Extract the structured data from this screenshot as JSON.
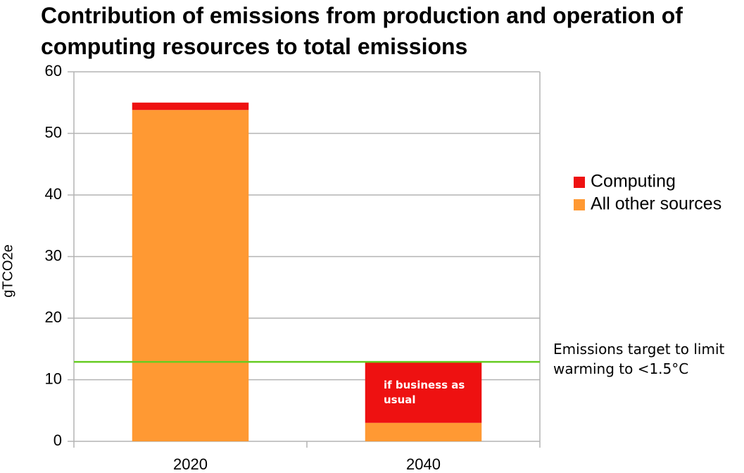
{
  "chart_data": {
    "type": "stacked_bar",
    "title": "Contribution of emissions from production and operation of computing resources to total emissions",
    "y_label": "gTCO2e",
    "categories": [
      "2020",
      "2040"
    ],
    "series": [
      {
        "name": "All other sources",
        "color": "#ff9933",
        "values": [
          53.8,
          3
        ]
      },
      {
        "name": "Computing",
        "color": "#ee1111",
        "values": [
          1.2,
          9.8
        ]
      }
    ],
    "ylim": [
      0,
      60
    ],
    "yticks": [
      0,
      10,
      20,
      30,
      40,
      50,
      60
    ],
    "grid": true,
    "target_line": {
      "value": 12.9,
      "label": "Emissions target to limit warming to <1.5°C",
      "color": "#66cc22"
    },
    "bar_annotation": "if business as usual"
  }
}
